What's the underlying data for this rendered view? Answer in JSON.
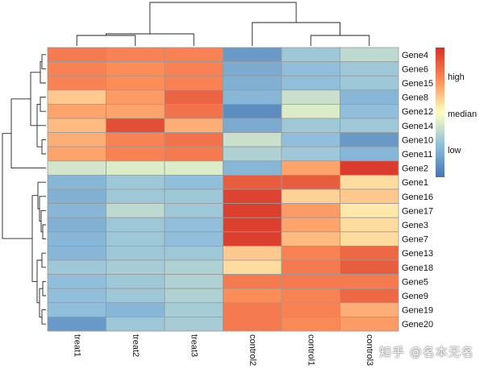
{
  "chart_data": {
    "type": "heatmap",
    "columns": [
      "treat1",
      "treat2",
      "treat3",
      "control2",
      "control1",
      "control3"
    ],
    "rows": [
      "Gene4",
      "Gene6",
      "Gene15",
      "Gene8",
      "Gene12",
      "Gene14",
      "Gene10",
      "Gene11",
      "Gene2",
      "Gene1",
      "Gene16",
      "Gene17",
      "Gene3",
      "Gene7",
      "Gene13",
      "Gene18",
      "Gene5",
      "Gene9",
      "Gene19",
      "Gene20"
    ],
    "values": [
      [
        0.8,
        0.78,
        0.78,
        0.12,
        0.28,
        0.35
      ],
      [
        0.78,
        0.75,
        0.78,
        0.18,
        0.25,
        0.28
      ],
      [
        0.78,
        0.75,
        0.78,
        0.2,
        0.25,
        0.28
      ],
      [
        0.62,
        0.72,
        0.86,
        0.22,
        0.38,
        0.22
      ],
      [
        0.7,
        0.7,
        0.82,
        0.08,
        0.42,
        0.25
      ],
      [
        0.65,
        0.92,
        0.68,
        0.18,
        0.28,
        0.28
      ],
      [
        0.68,
        0.78,
        0.82,
        0.38,
        0.25,
        0.12
      ],
      [
        0.7,
        0.78,
        0.8,
        0.32,
        0.28,
        0.22
      ],
      [
        0.4,
        0.42,
        0.42,
        0.22,
        0.7,
        0.97
      ],
      [
        0.22,
        0.28,
        0.25,
        0.88,
        0.88,
        0.58
      ],
      [
        0.2,
        0.28,
        0.28,
        0.95,
        0.6,
        0.62
      ],
      [
        0.22,
        0.35,
        0.28,
        0.96,
        0.72,
        0.55
      ],
      [
        0.2,
        0.28,
        0.25,
        0.96,
        0.7,
        0.58
      ],
      [
        0.22,
        0.28,
        0.25,
        0.96,
        0.65,
        0.58
      ],
      [
        0.22,
        0.28,
        0.28,
        0.62,
        0.78,
        0.85
      ],
      [
        0.28,
        0.3,
        0.32,
        0.58,
        0.8,
        0.88
      ],
      [
        0.25,
        0.28,
        0.32,
        0.8,
        0.8,
        0.8
      ],
      [
        0.25,
        0.28,
        0.32,
        0.75,
        0.78,
        0.85
      ],
      [
        0.25,
        0.22,
        0.3,
        0.8,
        0.78,
        0.68
      ],
      [
        0.12,
        0.28,
        0.3,
        0.8,
        0.76,
        0.72
      ]
    ],
    "legend": {
      "labels": [
        "high",
        "median",
        "low"
      ],
      "position": "right"
    },
    "colors": {
      "low": "#4575b4",
      "lowmid": "#91bfdb",
      "mid": "#ffffbf",
      "highmid": "#fc8d59",
      "high": "#d73027",
      "border": "#9a9a9a"
    }
  },
  "watermark": "知乎 @名本无名"
}
